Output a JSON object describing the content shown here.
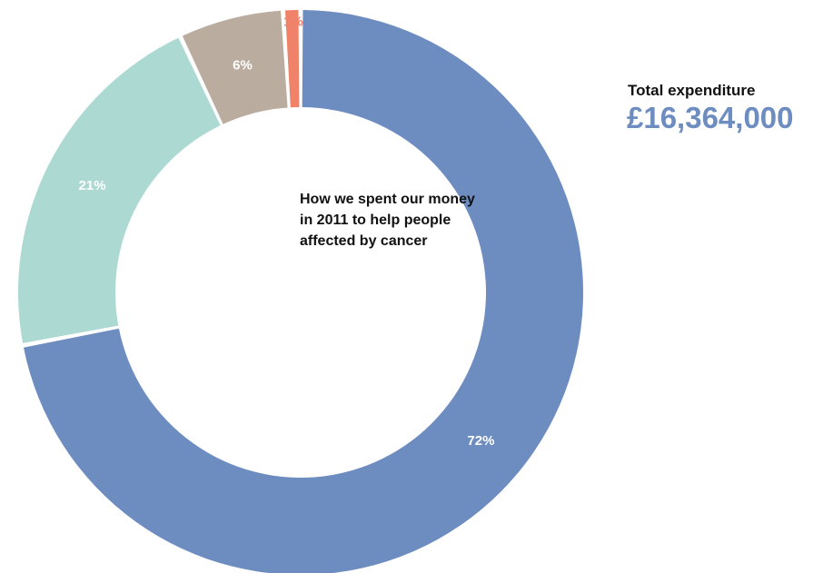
{
  "chart_data": {
    "type": "pie",
    "donut": true,
    "title": "How we spent our money in 2011 to help people affected by cancer",
    "slices": [
      {
        "value": 72,
        "label": "72%",
        "color": "#6d8cc0",
        "label_color": "#ffffff"
      },
      {
        "value": 21,
        "label": "21%",
        "color": "#acdad3",
        "label_color": "#ffffff"
      },
      {
        "value": 6,
        "label": "6%",
        "color": "#baada0",
        "label_color": "#ffffff"
      },
      {
        "value": 1,
        "label": "1%",
        "color": "#f0826a",
        "label_color": "#f0826a"
      }
    ]
  },
  "total": {
    "label": "Total expenditure",
    "value": "£16,364,000",
    "value_color": "#6d8cc0"
  }
}
